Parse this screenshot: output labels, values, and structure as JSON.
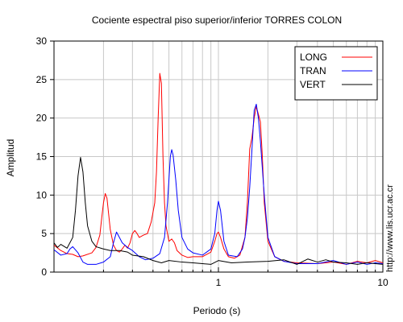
{
  "chart_data": {
    "type": "line",
    "title": "Cociente espectral piso superior/inferior  TORRES COLON",
    "xlabel": "Periodo (s)",
    "ylabel": "Amplitud",
    "x_scale": "log",
    "xlim": [
      0.1,
      10
    ],
    "ylim": [
      0,
      30
    ],
    "x_tick_labels": [
      {
        "value": 1,
        "label": "1"
      },
      {
        "value": 10,
        "label": "10"
      }
    ],
    "y_ticks": [
      0,
      5,
      10,
      15,
      20,
      25,
      30
    ],
    "grid": true,
    "legend_position": "top-right",
    "side_note": "http://www.lis.ucr.ac.cr",
    "series": [
      {
        "name": "LONG",
        "color": "#ff0000",
        "points": [
          [
            0.1,
            3.5
          ],
          [
            0.11,
            2.8
          ],
          [
            0.12,
            2.4
          ],
          [
            0.13,
            2.3
          ],
          [
            0.14,
            2.0
          ],
          [
            0.15,
            2.1
          ],
          [
            0.17,
            2.5
          ],
          [
            0.18,
            3.2
          ],
          [
            0.19,
            4.8
          ],
          [
            0.195,
            7.0
          ],
          [
            0.2,
            9.0
          ],
          [
            0.205,
            10.2
          ],
          [
            0.21,
            9.6
          ],
          [
            0.215,
            7.5
          ],
          [
            0.22,
            5.5
          ],
          [
            0.23,
            3.5
          ],
          [
            0.24,
            2.8
          ],
          [
            0.25,
            2.6
          ],
          [
            0.26,
            3.0
          ],
          [
            0.27,
            3.5
          ],
          [
            0.28,
            3.1
          ],
          [
            0.29,
            3.8
          ],
          [
            0.3,
            5.0
          ],
          [
            0.31,
            5.4
          ],
          [
            0.32,
            5.0
          ],
          [
            0.33,
            4.5
          ],
          [
            0.35,
            4.8
          ],
          [
            0.37,
            5.0
          ],
          [
            0.39,
            6.5
          ],
          [
            0.41,
            9.0
          ],
          [
            0.42,
            13.0
          ],
          [
            0.43,
            20.0
          ],
          [
            0.44,
            25.8
          ],
          [
            0.45,
            24.5
          ],
          [
            0.46,
            15.0
          ],
          [
            0.47,
            9.0
          ],
          [
            0.48,
            6.0
          ],
          [
            0.5,
            4.0
          ],
          [
            0.52,
            4.3
          ],
          [
            0.54,
            3.8
          ],
          [
            0.56,
            2.8
          ],
          [
            0.6,
            2.2
          ],
          [
            0.65,
            1.9
          ],
          [
            0.7,
            2.0
          ],
          [
            0.8,
            2.0
          ],
          [
            0.9,
            2.6
          ],
          [
            0.95,
            4.0
          ],
          [
            0.98,
            5.0
          ],
          [
            1.0,
            5.2
          ],
          [
            1.03,
            4.5
          ],
          [
            1.08,
            3.0
          ],
          [
            1.15,
            2.0
          ],
          [
            1.25,
            1.8
          ],
          [
            1.35,
            2.2
          ],
          [
            1.45,
            4.5
          ],
          [
            1.5,
            9.0
          ],
          [
            1.55,
            16.0
          ],
          [
            1.6,
            17.5
          ],
          [
            1.65,
            20.0
          ],
          [
            1.7,
            21.5
          ],
          [
            1.75,
            20.5
          ],
          [
            1.8,
            19.5
          ],
          [
            1.85,
            15.0
          ],
          [
            1.9,
            9.0
          ],
          [
            2.0,
            4.0
          ],
          [
            2.2,
            2.0
          ],
          [
            2.5,
            1.4
          ],
          [
            3.0,
            1.2
          ],
          [
            4.0,
            1.1
          ],
          [
            5.0,
            1.3
          ],
          [
            6.0,
            1.0
          ],
          [
            7.0,
            1.4
          ],
          [
            8.0,
            1.2
          ],
          [
            9.0,
            1.5
          ],
          [
            10.0,
            1.2
          ]
        ]
      },
      {
        "name": "TRAN",
        "color": "#0000ff",
        "points": [
          [
            0.1,
            2.9
          ],
          [
            0.11,
            2.2
          ],
          [
            0.12,
            2.4
          ],
          [
            0.125,
            3.0
          ],
          [
            0.13,
            3.3
          ],
          [
            0.14,
            2.5
          ],
          [
            0.15,
            1.3
          ],
          [
            0.16,
            1.0
          ],
          [
            0.18,
            1.0
          ],
          [
            0.2,
            1.3
          ],
          [
            0.22,
            2.0
          ],
          [
            0.23,
            3.8
          ],
          [
            0.24,
            5.2
          ],
          [
            0.25,
            4.5
          ],
          [
            0.26,
            3.8
          ],
          [
            0.28,
            3.2
          ],
          [
            0.3,
            2.8
          ],
          [
            0.33,
            2.0
          ],
          [
            0.36,
            1.6
          ],
          [
            0.4,
            1.8
          ],
          [
            0.44,
            2.4
          ],
          [
            0.47,
            4.5
          ],
          [
            0.49,
            9.0
          ],
          [
            0.5,
            12.0
          ],
          [
            0.51,
            15.0
          ],
          [
            0.52,
            15.9
          ],
          [
            0.53,
            15.2
          ],
          [
            0.55,
            12.0
          ],
          [
            0.57,
            8.0
          ],
          [
            0.6,
            4.5
          ],
          [
            0.65,
            3.0
          ],
          [
            0.7,
            2.5
          ],
          [
            0.8,
            2.2
          ],
          [
            0.9,
            3.0
          ],
          [
            0.95,
            5.0
          ],
          [
            0.98,
            8.0
          ],
          [
            1.0,
            9.2
          ],
          [
            1.03,
            8.0
          ],
          [
            1.08,
            4.0
          ],
          [
            1.15,
            2.2
          ],
          [
            1.3,
            2.0
          ],
          [
            1.4,
            3.0
          ],
          [
            1.45,
            4.5
          ],
          [
            1.5,
            7.0
          ],
          [
            1.55,
            11.0
          ],
          [
            1.6,
            16.0
          ],
          [
            1.65,
            21.0
          ],
          [
            1.7,
            21.8
          ],
          [
            1.75,
            20.0
          ],
          [
            1.8,
            17.0
          ],
          [
            1.9,
            10.0
          ],
          [
            2.0,
            4.5
          ],
          [
            2.2,
            2.0
          ],
          [
            2.5,
            1.4
          ],
          [
            3.0,
            1.1
          ],
          [
            4.0,
            1.1
          ],
          [
            5.0,
            1.5
          ],
          [
            6.0,
            1.0
          ],
          [
            7.0,
            1.3
          ],
          [
            8.0,
            1.0
          ],
          [
            9.0,
            1.2
          ],
          [
            10.0,
            1.1
          ]
        ]
      },
      {
        "name": "VERT",
        "color": "#000000",
        "points": [
          [
            0.1,
            3.8
          ],
          [
            0.105,
            3.2
          ],
          [
            0.11,
            3.6
          ],
          [
            0.12,
            3.1
          ],
          [
            0.13,
            4.5
          ],
          [
            0.135,
            8.0
          ],
          [
            0.14,
            12.5
          ],
          [
            0.145,
            14.9
          ],
          [
            0.15,
            13.0
          ],
          [
            0.155,
            9.0
          ],
          [
            0.16,
            6.0
          ],
          [
            0.17,
            4.0
          ],
          [
            0.18,
            3.3
          ],
          [
            0.2,
            3.0
          ],
          [
            0.22,
            2.8
          ],
          [
            0.25,
            2.8
          ],
          [
            0.28,
            2.6
          ],
          [
            0.3,
            2.2
          ],
          [
            0.35,
            2.0
          ],
          [
            0.4,
            1.5
          ],
          [
            0.45,
            1.2
          ],
          [
            0.5,
            1.5
          ],
          [
            0.6,
            1.3
          ],
          [
            0.7,
            1.2
          ],
          [
            0.8,
            1.1
          ],
          [
            0.9,
            1.0
          ],
          [
            1.0,
            1.5
          ],
          [
            1.2,
            1.2
          ],
          [
            1.5,
            1.3
          ],
          [
            2.0,
            1.4
          ],
          [
            2.5,
            1.6
          ],
          [
            3.0,
            1.0
          ],
          [
            3.5,
            1.7
          ],
          [
            4.0,
            1.3
          ],
          [
            4.5,
            1.6
          ],
          [
            5.0,
            1.3
          ],
          [
            6.0,
            1.2
          ],
          [
            7.0,
            1.0
          ],
          [
            8.0,
            1.2
          ],
          [
            9.0,
            1.1
          ],
          [
            10.0,
            1.0
          ]
        ]
      }
    ]
  }
}
